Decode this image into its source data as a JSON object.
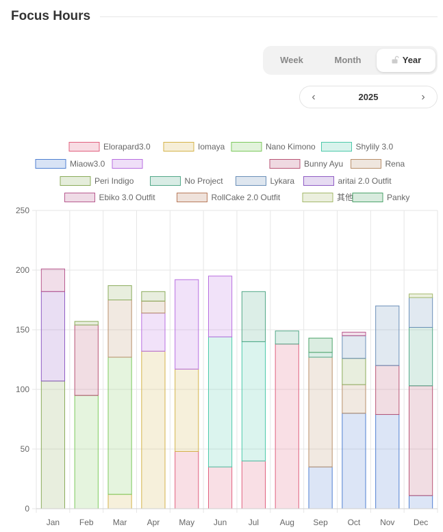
{
  "header": {
    "title": "Focus Hours"
  },
  "period_tabs": [
    {
      "label": "Week",
      "active": false
    },
    {
      "label": "Month",
      "active": false
    },
    {
      "label": "Year",
      "active": true
    }
  ],
  "year_nav": {
    "prev_icon": "chevron-left-icon",
    "year": "2025",
    "next_icon": "chevron-right-icon"
  },
  "chart_data": {
    "type": "bar",
    "stacked": true,
    "categories": [
      "Jan",
      "Feb",
      "Mar",
      "Apr",
      "May",
      "Jun",
      "Jul",
      "Aug",
      "Sep",
      "Oct",
      "Nov",
      "Dec"
    ],
    "ylim": [
      0,
      250
    ],
    "yticks": [
      0,
      50,
      100,
      150,
      200,
      250
    ],
    "legend_position": "top",
    "series": [
      {
        "name": "Elorapard3.0",
        "color": "#e0607e",
        "values": [
          0,
          0,
          0,
          0,
          48,
          35,
          40,
          138,
          0,
          0,
          0,
          0
        ]
      },
      {
        "name": "Iomaya",
        "color": "#d4b34a",
        "values": [
          0,
          0,
          12,
          132,
          69,
          0,
          0,
          0,
          0,
          0,
          0,
          0
        ]
      },
      {
        "name": "Nano Kimono",
        "color": "#7cc95c",
        "values": [
          0,
          95,
          115,
          0,
          0,
          0,
          0,
          0,
          0,
          0,
          0,
          0
        ]
      },
      {
        "name": "Shylily 3.0",
        "color": "#4cc9aa",
        "values": [
          0,
          0,
          0,
          0,
          0,
          109,
          100,
          0,
          0,
          0,
          0,
          0
        ]
      },
      {
        "name": "Miaow3.0",
        "color": "#4f7fd1",
        "values": [
          0,
          0,
          0,
          0,
          0,
          0,
          0,
          0,
          35,
          80,
          79,
          11
        ]
      },
      {
        "name": "",
        "color": "#b86ee0",
        "values": [
          0,
          0,
          0,
          32,
          75,
          51,
          0,
          0,
          0,
          0,
          0,
          0
        ]
      },
      {
        "name": "Bunny Ayu",
        "color": "#b85475",
        "values": [
          0,
          59,
          0,
          0,
          0,
          0,
          0,
          0,
          0,
          0,
          41,
          92
        ]
      },
      {
        "name": "Rena",
        "color": "#b88f6a",
        "values": [
          0,
          0,
          48,
          10,
          0,
          0,
          0,
          0,
          92,
          24,
          0,
          0
        ]
      },
      {
        "name": "Peri Indigo",
        "color": "#8aab5a",
        "values": [
          107,
          3,
          12,
          8,
          0,
          0,
          0,
          0,
          0,
          22,
          0,
          0
        ]
      },
      {
        "name": "No Project",
        "color": "#52a888",
        "values": [
          0,
          0,
          0,
          0,
          0,
          0,
          42,
          11,
          4,
          0,
          0,
          49
        ]
      },
      {
        "name": "Lykara",
        "color": "#6a8fb8",
        "values": [
          0,
          0,
          0,
          0,
          0,
          0,
          0,
          0,
          0,
          19,
          50,
          25
        ]
      },
      {
        "name": "aritai 2.0 Outfit",
        "color": "#8f5cc4",
        "values": [
          75,
          0,
          0,
          0,
          0,
          0,
          0,
          0,
          0,
          0,
          0,
          0
        ]
      },
      {
        "name": "Ebiko 3.0 Outfit",
        "color": "#b85a8f",
        "values": [
          19,
          0,
          0,
          0,
          0,
          0,
          0,
          0,
          0,
          3,
          0,
          0
        ]
      },
      {
        "name": "RollCake 2.0 Outfit",
        "color": "#b87a5a",
        "values": [
          0,
          0,
          0,
          0,
          0,
          0,
          0,
          0,
          0,
          0,
          0,
          0
        ]
      },
      {
        "name": "其他",
        "color": "#a3b86a",
        "values": [
          0,
          0,
          0,
          0,
          0,
          0,
          0,
          0,
          0,
          0,
          0,
          3
        ]
      },
      {
        "name": "Panky",
        "color": "#4ca36a",
        "values": [
          0,
          0,
          0,
          0,
          0,
          0,
          0,
          0,
          12,
          0,
          0,
          0
        ]
      }
    ]
  }
}
